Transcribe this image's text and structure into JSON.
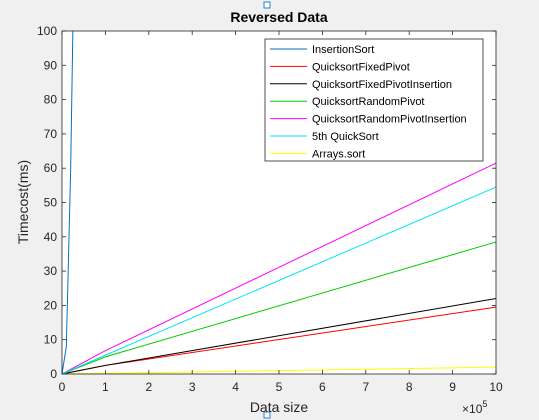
{
  "chart_data": {
    "type": "line",
    "title": "Reversed Data",
    "xlabel": "Data size",
    "ylabel": "Timecost(ms)",
    "xlim": [
      0,
      10
    ],
    "ylim": [
      0,
      100
    ],
    "x_exponent_base": "10",
    "x_exponent_power": "5",
    "x_ticks": [
      "0",
      "1",
      "2",
      "3",
      "4",
      "5",
      "6",
      "7",
      "8",
      "9",
      "10"
    ],
    "y_ticks": [
      "0",
      "10",
      "20",
      "30",
      "40",
      "50",
      "60",
      "70",
      "80",
      "90",
      "100"
    ],
    "grid": false,
    "legend_position": "top-right",
    "series": [
      {
        "name": "InsertionSort",
        "color": "#0072bd",
        "x": [
          0,
          0.1,
          0.2,
          0.25
        ],
        "y": [
          0,
          8,
          60,
          100
        ]
      },
      {
        "name": "QuicksortFixedPivot",
        "color": "#ff0000",
        "x": [
          0,
          1,
          10
        ],
        "y": [
          0,
          2.5,
          19.5
        ]
      },
      {
        "name": "QuicksortFixedPivotInsertion",
        "color": "#000000",
        "x": [
          0,
          1,
          10
        ],
        "y": [
          0,
          2.5,
          22
        ]
      },
      {
        "name": "QuicksortRandomPivot",
        "color": "#00cc00",
        "x": [
          0,
          1,
          10
        ],
        "y": [
          0,
          5,
          38.5
        ]
      },
      {
        "name": "QuicksortRandomPivotInsertion",
        "color": "#ff00ff",
        "x": [
          0,
          1,
          10
        ],
        "y": [
          0,
          6.8,
          61.5
        ]
      },
      {
        "name": "5th QuickSort",
        "color": "#00e5ee",
        "x": [
          0,
          1,
          10
        ],
        "y": [
          0,
          5.5,
          54.5
        ]
      },
      {
        "name": "Arrays.sort",
        "color": "#ffff00",
        "x": [
          0,
          10
        ],
        "y": [
          0,
          2
        ]
      }
    ]
  }
}
